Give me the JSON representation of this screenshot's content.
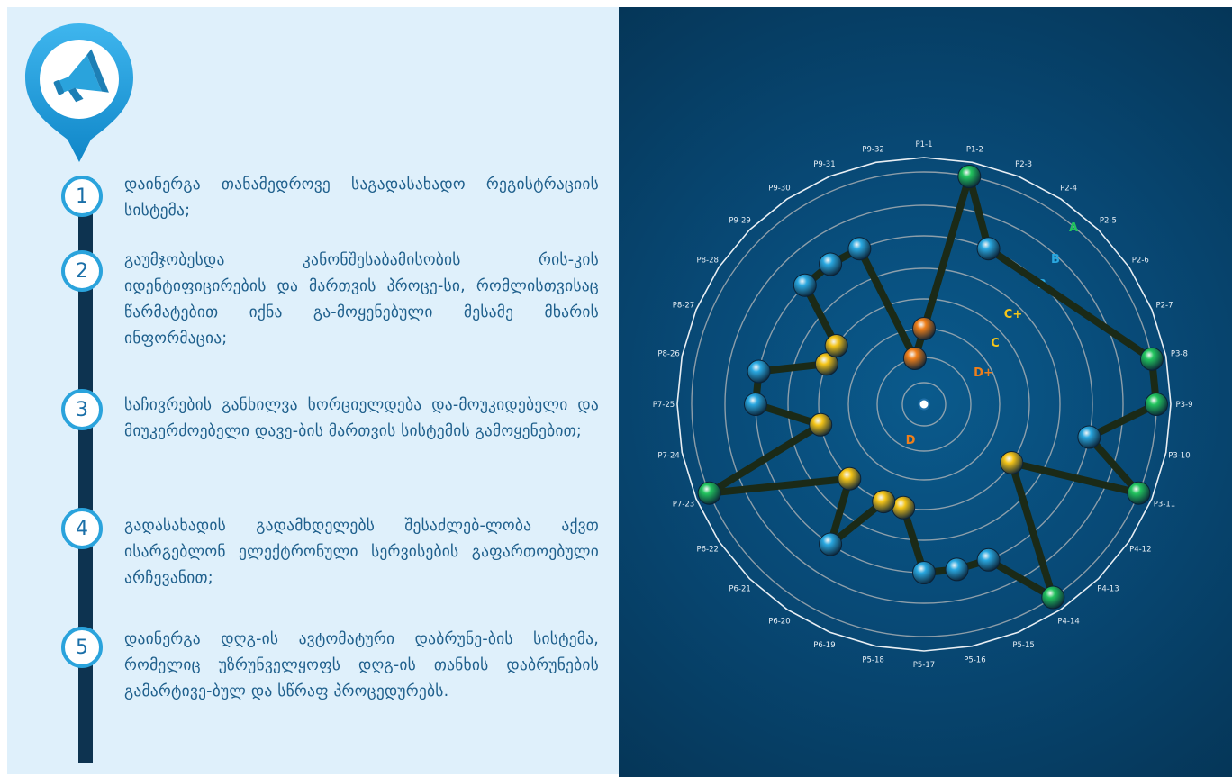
{
  "colors": {
    "left_background": "#dff0fb",
    "timeline": "#0d3350",
    "step_border": "#2aa3dc",
    "step_text": "#1e5f8c",
    "chart_background": "#084a77",
    "ring": "#b9b9b9",
    "link": "#1b2a17",
    "grade_A": "#22c55e",
    "grade_B": "#2aa8e0",
    "grade_C": "#f5c518",
    "grade_D": "#f07f1a"
  },
  "icons": {
    "badge": "megaphone-icon"
  },
  "steps": [
    {
      "number": "1",
      "text": "დაინერგა თანამედროვე საგადასახადო რეგისტრაციის სისტემა;"
    },
    {
      "number": "2",
      "text": "გაუმჯობესდა კანონშესაბამისობის რის-კის იდენტიფიცირების და მართვის პროცე-სი, რომლისთვისაც წარმატებით იქნა გა-მოყენებული მესამე მხარის ინფორმაცია;"
    },
    {
      "number": "3",
      "text": "საჩივრების განხილვა ხორციელდება და-მოუკიდებელი და მიუკერძოებელი დავე-ბის მართვის სისტემის გამოყენებით;"
    },
    {
      "number": "4",
      "text": "გადასახადის გადამხდელებს შესაძლებ-ლობა აქვთ ისარგებლონ ელექტრონული სერვისების გაფართოებული არჩევანით;"
    },
    {
      "number": "5",
      "text": "დაინერგა დღგ-ის ავტომატური დაბრუნე-ბის სისტემა, რომელიც უზრუნველყოფს დღგ-ის თანხის დაბრუნების გამარტივე-ბულ და სწრაფ პროცედურებს."
    }
  ],
  "chart_data": {
    "type": "radar",
    "categories": [
      "P1-1",
      "P1-2",
      "P2-3",
      "P2-4",
      "P2-5",
      "P2-6",
      "P2-7",
      "P3-8",
      "P3-9",
      "P3-10",
      "P3-11",
      "P4-12",
      "P4-13",
      "P4-14",
      "P5-15",
      "P5-16",
      "P5-17",
      "P5-18",
      "P6-19",
      "P6-20",
      "P6-21",
      "P6-22",
      "P7-23",
      "P7-24",
      "P7-25",
      "P8-26",
      "P8-27",
      "P8-28",
      "P9-29",
      "P9-30",
      "P9-31",
      "P9-32"
    ],
    "scale_levels": [
      "D",
      "D+",
      "C",
      "C+",
      "B",
      "B",
      "A"
    ],
    "scores": [
      "D+",
      "A",
      "B",
      "",
      "",
      "",
      "",
      "A",
      "A",
      "B",
      "A",
      "C",
      "",
      "A",
      "B",
      "B",
      "B",
      "C",
      "C",
      "B",
      "C",
      "",
      "A",
      "C",
      "B",
      "B",
      "C",
      "C",
      "B",
      "B",
      "B",
      "D"
    ]
  }
}
